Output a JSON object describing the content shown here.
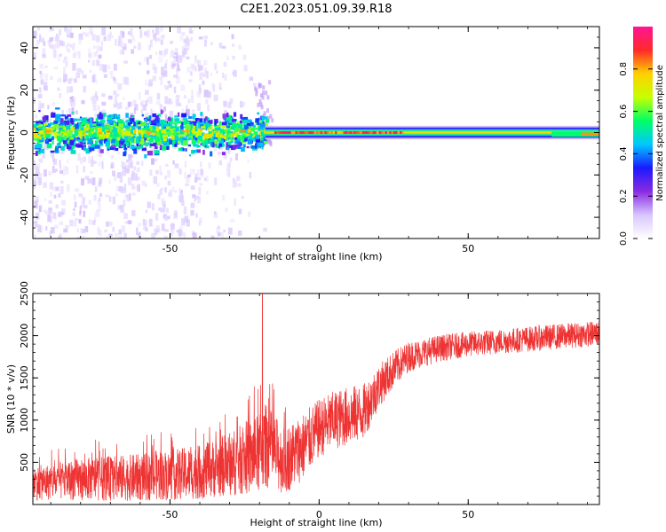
{
  "figure": {
    "title": "C2E1.2023.051.09.39.R18"
  },
  "chart_data": [
    {
      "type": "heatmap",
      "xlabel": "Height of straight line (km)",
      "ylabel": "Frequency (Hz)",
      "xlim": [
        -96,
        94
      ],
      "ylim": [
        -50,
        50
      ],
      "x_ticks": [
        -50,
        0,
        50
      ],
      "y_ticks": [
        -40,
        -20,
        0,
        20,
        40
      ],
      "colorbar": {
        "label": "Normalized spectral amplitude",
        "range": [
          0,
          1
        ],
        "ticks": [
          0.0,
          0.2,
          0.4,
          0.6,
          0.8
        ],
        "tick_labels": [
          "0.0",
          "0.2",
          "0.4",
          "0.6",
          "0.8"
        ],
        "colors": [
          "#ffffff",
          "#d8c6ff",
          "#8a2be2",
          "#1a1aff",
          "#00c8ff",
          "#00ff66",
          "#c8ff00",
          "#ffd000",
          "#ff2a2a",
          "#ff1493"
        ]
      },
      "description_values": {
        "scattered_noise_until_x": -18,
        "dense_band_x_range": [
          -96,
          -18
        ],
        "dense_band_halfwidth_hz": 5,
        "narrow_band_x_range": [
          -18,
          94
        ],
        "narrow_band_center_hz": 0,
        "narrow_band_peak_amplitude": 0.9
      }
    },
    {
      "type": "line",
      "xlabel": "Height of straight line (km)",
      "ylabel": "SNR (10 * v/v)",
      "xlim": [
        -96,
        94
      ],
      "ylim": [
        0,
        2500
      ],
      "x_ticks": [
        -50,
        0,
        50
      ],
      "y_ticks": [
        500,
        1000,
        1500,
        2000,
        2500
      ],
      "line_color": "#ee3333",
      "series": [
        {
          "name": "",
          "envelope_x": [
            -96,
            -80,
            -60,
            -40,
            -30,
            -20,
            -18,
            -15,
            -12,
            -10,
            -5,
            0,
            5,
            10,
            15,
            20,
            25,
            30,
            40,
            50,
            60,
            70,
            80,
            94
          ],
          "envelope_mean": [
            250,
            300,
            320,
            380,
            480,
            600,
            700,
            620,
            520,
            560,
            700,
            900,
            1000,
            1050,
            1100,
            1400,
            1600,
            1750,
            1850,
            1900,
            1930,
            1960,
            1990,
            2030
          ],
          "envelope_spread": [
            200,
            250,
            280,
            320,
            380,
            480,
            500,
            450,
            400,
            400,
            400,
            350,
            350,
            350,
            330,
            260,
            220,
            180,
            160,
            150,
            150,
            150,
            150,
            150
          ],
          "peak": {
            "x": -19,
            "y": 2500
          }
        }
      ]
    }
  ]
}
